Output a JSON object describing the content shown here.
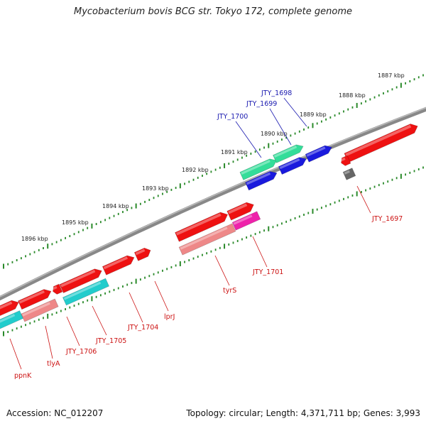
{
  "title": "Mycobacterium bovis BCG str. Tokyo 172, complete genome",
  "footer": {
    "accession": "Accession: NC_012207",
    "summary": "Topology: circular; Length: 4,371,711 bp; Genes: 3,993"
  },
  "colors": {
    "backbone": "#888888",
    "tick": "#2a8a2a",
    "red": "#ee1111",
    "pink": "#ee8888",
    "cyan": "#22cccc",
    "green": "#33dd99",
    "blue": "#1a1add",
    "magenta": "#ee22aa",
    "gray": "#666666"
  },
  "kbp_labels": [
    "1887 kbp",
    "1888 kbp",
    "1889 kbp",
    "1890 kbp",
    "1891 kbp",
    "1892 kbp",
    "1893 kbp",
    "1894 kbp",
    "1895 kbp",
    "1896 kbp"
  ],
  "gene_labels": {
    "blue": [
      "JTY_1698",
      "JTY_1699",
      "JTY_1700"
    ],
    "red": [
      "JTY_1697",
      "JTY_1701",
      "tyrS",
      "lprJ",
      "JTY_1704",
      "JTY_1705",
      "JTY_1706",
      "tlyA",
      "ppnK"
    ]
  }
}
